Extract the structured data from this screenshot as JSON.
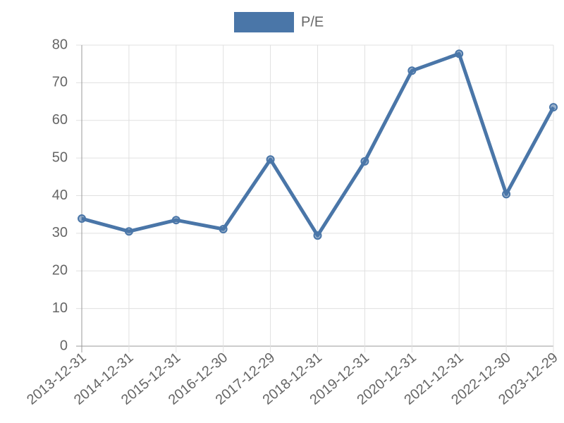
{
  "chart_data": {
    "type": "line",
    "categories": [
      "2013-12-31",
      "2014-12-31",
      "2015-12-31",
      "2016-12-30",
      "2017-12-29",
      "2018-12-31",
      "2019-12-31",
      "2020-12-31",
      "2021-12-31",
      "2022-12-30",
      "2023-12-29"
    ],
    "series": [
      {
        "name": "P/E",
        "color": "#4a76a8",
        "values": [
          33.9,
          30.5,
          33.5,
          31.1,
          49.6,
          29.4,
          49.1,
          73.2,
          77.7,
          40.4,
          63.5
        ]
      }
    ],
    "ylim": [
      0,
      80
    ],
    "yticks": [
      0,
      10,
      20,
      30,
      40,
      50,
      60,
      70,
      80
    ],
    "grid": true,
    "legend": "top"
  }
}
